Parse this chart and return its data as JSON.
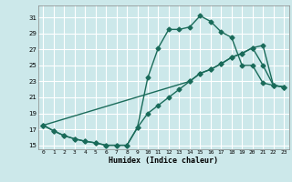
{
  "xlabel": "Humidex (Indice chaleur)",
  "ylabel": "",
  "bg_color": "#cce8ea",
  "grid_color": "#ffffff",
  "line_color": "#1a6b5a",
  "xlim": [
    -0.5,
    23.5
  ],
  "ylim": [
    14.5,
    32.5
  ],
  "xticks": [
    0,
    1,
    2,
    3,
    4,
    5,
    6,
    7,
    8,
    9,
    10,
    11,
    12,
    13,
    14,
    15,
    16,
    17,
    18,
    19,
    20,
    21,
    22,
    23
  ],
  "yticks": [
    15,
    17,
    19,
    21,
    23,
    25,
    27,
    29,
    31
  ],
  "line1_x": [
    0,
    1,
    2,
    3,
    4,
    5,
    6,
    7,
    8,
    9,
    10,
    11,
    12,
    13,
    14,
    15,
    16,
    17,
    18,
    19,
    20,
    21,
    22,
    23
  ],
  "line1_y": [
    17.5,
    16.8,
    16.2,
    15.8,
    15.5,
    15.3,
    15.0,
    15.0,
    15.0,
    17.2,
    23.5,
    27.2,
    29.5,
    29.5,
    29.8,
    31.2,
    30.5,
    29.2,
    28.5,
    25.0,
    25.0,
    22.8,
    22.5,
    22.3
  ],
  "line2_x": [
    0,
    1,
    2,
    3,
    4,
    5,
    6,
    7,
    8,
    9,
    10,
    11,
    12,
    13,
    14,
    15,
    16,
    17,
    18,
    19,
    20,
    21,
    22,
    23
  ],
  "line2_y": [
    17.5,
    16.8,
    16.2,
    15.8,
    15.5,
    15.3,
    15.0,
    15.0,
    15.0,
    17.2,
    19.0,
    20.0,
    21.0,
    22.0,
    23.0,
    24.0,
    24.5,
    25.2,
    26.0,
    26.5,
    27.2,
    27.5,
    22.5,
    22.3
  ],
  "line3_x": [
    0,
    14,
    15,
    16,
    17,
    18,
    19,
    20,
    21,
    22,
    23
  ],
  "line3_y": [
    17.5,
    23.0,
    24.0,
    24.5,
    25.2,
    26.0,
    26.5,
    27.2,
    25.0,
    22.5,
    22.3
  ],
  "marker": "D",
  "markersize": 2.5,
  "linewidth": 1.0
}
